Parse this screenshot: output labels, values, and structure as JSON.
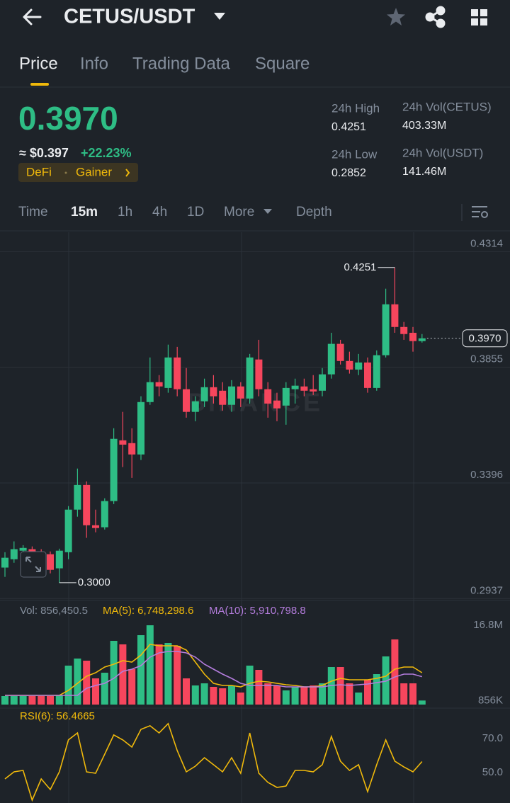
{
  "header": {
    "pair": "CETUS/USDT"
  },
  "tabs": [
    "Price",
    "Info",
    "Trading Data",
    "Square"
  ],
  "price": {
    "last": "0.3970",
    "usd": "≈ $0.397",
    "change": "+22.23%",
    "tags": [
      "DeFi",
      "Gainer"
    ]
  },
  "stats": [
    {
      "label": "24h High",
      "value": "0.4251"
    },
    {
      "label": "24h Vol(CETUS)",
      "value": "403.33M"
    },
    {
      "label": "24h Low",
      "value": "0.2852"
    },
    {
      "label": "24h Vol(USDT)",
      "value": "141.46M"
    }
  ],
  "intervals": [
    "Time",
    "15m",
    "1h",
    "4h",
    "1D",
    "More",
    "Depth"
  ],
  "chart_data": [
    {
      "type": "candlestick",
      "watermark": "BINANCE",
      "up_color": "#2ebd85",
      "down_color": "#f6465d",
      "open": [
        0.306,
        0.3093,
        0.3127,
        0.3133,
        0.3121,
        0.3113,
        0.3057,
        0.3121,
        0.329,
        0.3388,
        0.3228,
        0.322,
        0.3324,
        0.3565,
        0.3554,
        0.3509,
        0.3717,
        0.3796,
        0.3773,
        0.3894,
        0.3768,
        0.3678,
        0.372,
        0.3776,
        0.3762,
        0.3706,
        0.3779,
        0.3731,
        0.3886,
        0.3768,
        0.3723,
        0.3703,
        0.3768,
        0.3779,
        0.3768,
        0.3762,
        0.3827,
        0.3948,
        0.388,
        0.3846,
        0.3874,
        0.3773,
        0.3903,
        0.4105,
        0.4015,
        0.3992,
        0.3959
      ],
      "high": [
        0.3121,
        0.3164,
        0.3149,
        0.3144,
        0.3133,
        0.3124,
        0.3135,
        0.3304,
        0.3453,
        0.3402,
        0.329,
        0.3335,
        0.3613,
        0.3678,
        0.3613,
        0.374,
        0.3894,
        0.3824,
        0.3945,
        0.3936,
        0.3852,
        0.374,
        0.381,
        0.3824,
        0.3796,
        0.3804,
        0.3796,
        0.3908,
        0.3964,
        0.3796,
        0.3754,
        0.3796,
        0.381,
        0.381,
        0.3824,
        0.3852,
        0.3992,
        0.3964,
        0.3917,
        0.3908,
        0.3894,
        0.3922,
        0.4167,
        0.4251,
        0.4035,
        0.4015,
        0.3987
      ],
      "low": [
        0.3023,
        0.3079,
        0.3116,
        0.3043,
        0.3043,
        0.3037,
        0.3,
        0.3093,
        0.3262,
        0.3178,
        0.32,
        0.3211,
        0.3312,
        0.3459,
        0.3416,
        0.3487,
        0.3706,
        0.374,
        0.3754,
        0.374,
        0.3655,
        0.3641,
        0.3697,
        0.3711,
        0.3683,
        0.3678,
        0.3697,
        0.3711,
        0.374,
        0.3655,
        0.3641,
        0.3627,
        0.3711,
        0.374,
        0.3745,
        0.374,
        0.381,
        0.3866,
        0.383,
        0.3824,
        0.3754,
        0.3762,
        0.3894,
        0.3992,
        0.3964,
        0.3917,
        0.3953
      ],
      "close": [
        0.3099,
        0.3133,
        0.3138,
        0.3051,
        0.3057,
        0.3051,
        0.3127,
        0.329,
        0.3388,
        0.3228,
        0.3217,
        0.3324,
        0.3571,
        0.3548,
        0.3509,
        0.3717,
        0.3796,
        0.3779,
        0.3894,
        0.3768,
        0.3678,
        0.372,
        0.3776,
        0.374,
        0.3706,
        0.3779,
        0.3731,
        0.3894,
        0.3768,
        0.3711,
        0.3692,
        0.3773,
        0.3782,
        0.3762,
        0.3759,
        0.3827,
        0.3948,
        0.388,
        0.3846,
        0.3874,
        0.3773,
        0.3903,
        0.4105,
        0.4015,
        0.3987,
        0.3959,
        0.397
      ],
      "ylim": [
        0.2935,
        0.4391
      ],
      "yticks": [
        0.4314,
        0.3855,
        0.3396,
        0.2937
      ],
      "max_marker": 0.4251,
      "min_marker": {
        "value": 0.3,
        "label": "0.3000"
      },
      "last_price": {
        "value": 0.397,
        "label": "0.3970"
      }
    },
    {
      "type": "bar",
      "series": [
        {
          "type": "bar",
          "label": "Vol: 856,450.5",
          "values": [
            1800000,
            1800000,
            1800000,
            1800000,
            1800000,
            1800000,
            1950000,
            8250000,
            9750000,
            9300000,
            5550000,
            6750000,
            13500000,
            12750000,
            7500000,
            14700000,
            16800000,
            12750000,
            13050000,
            12450000,
            5550000,
            4050000,
            4500000,
            3750000,
            3450000,
            4050000,
            2550000,
            8250000,
            7350000,
            4500000,
            4050000,
            3000000,
            3750000,
            3750000,
            4050000,
            4500000,
            7950000,
            7950000,
            4500000,
            2550000,
            5250000,
            6450000,
            10200000,
            13800000,
            4500000,
            4500000,
            856450.5
          ]
        },
        {
          "type": "line",
          "label": "MA(5): 6,748,298.6",
          "color": "#f0b90b",
          "values": [
            1950000,
            1950000,
            1950000,
            1950000,
            1950000,
            1950000,
            1950000,
            3000000,
            4500000,
            6000000,
            6750000,
            7950000,
            8550000,
            9300000,
            9000000,
            10500000,
            12750000,
            12450000,
            12450000,
            12450000,
            11550000,
            9000000,
            6450000,
            4500000,
            4050000,
            4050000,
            3750000,
            4500000,
            4950000,
            4800000,
            4500000,
            4200000,
            4050000,
            3750000,
            3750000,
            4050000,
            4950000,
            5550000,
            5250000,
            5250000,
            5250000,
            5550000,
            6000000,
            7500000,
            7950000,
            7950000,
            6748298.6
          ]
        },
        {
          "type": "line",
          "label": "MA(10): 5,910,798.8",
          "color": "#b47ddd",
          "values": [
            1950000,
            1950000,
            1950000,
            1950000,
            1950000,
            1950000,
            1950000,
            1950000,
            1950000,
            3450000,
            4050000,
            4500000,
            5550000,
            7050000,
            7500000,
            8250000,
            10050000,
            10950000,
            11250000,
            11250000,
            10950000,
            10050000,
            8550000,
            7500000,
            6450000,
            5550000,
            4500000,
            4050000,
            4050000,
            4050000,
            4050000,
            3750000,
            3750000,
            3750000,
            3750000,
            3750000,
            4050000,
            4200000,
            4050000,
            4200000,
            4350000,
            4650000,
            4950000,
            5850000,
            6450000,
            6450000,
            5910798.8
          ]
        }
      ],
      "ylim": [
        0,
        21000000
      ],
      "yticks": [
        {
          "value": 16800000,
          "label": "16.8M"
        },
        {
          "value": 856000,
          "label": "856K"
        }
      ]
    },
    {
      "type": "line",
      "series": [
        {
          "label": "RSI(6): 56.4665",
          "color": "#f0b90b",
          "values": [
            46.25,
            50.4,
            51.25,
            33.75,
            46.25,
            40.0,
            50.4,
            69.2,
            73.3,
            50.4,
            49.6,
            60.8,
            72.1,
            69.2,
            65.0,
            75.4,
            77.5,
            73.3,
            78.75,
            62.9,
            50.4,
            53.75,
            58.75,
            54.6,
            50.4,
            58.75,
            49.6,
            73.3,
            49.6,
            44.2,
            41.25,
            42.1,
            51.25,
            51.25,
            50.4,
            54.6,
            71.25,
            56.7,
            51.25,
            54.6,
            38.75,
            54.6,
            69.2,
            56.7,
            53.3,
            50.4,
            56.4665
          ]
        }
      ],
      "ylim": [
        32.1,
        85.8
      ],
      "yticks": [
        {
          "value": 70,
          "label": "70.0"
        },
        {
          "value": 50,
          "label": "50.0"
        }
      ]
    }
  ]
}
